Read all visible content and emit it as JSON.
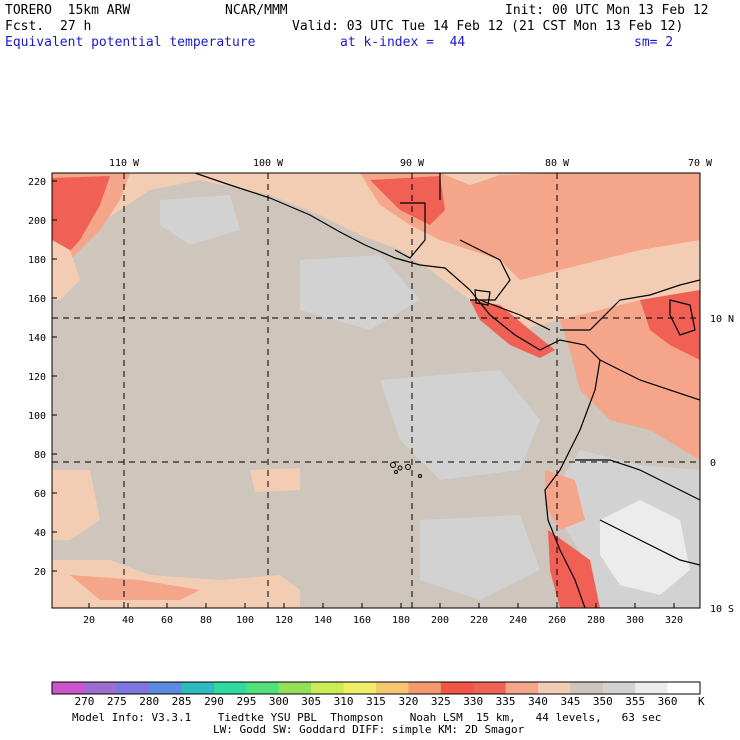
{
  "header": {
    "model": "TORERO  15km ARW",
    "center": "NCAR/MMM",
    "init": "Init: 00 UTC Mon 13 Feb 12",
    "fcst_label": "Fcst.",
    "fcst_value": "27 h",
    "valid": "Valid: 03 UTC Tue 14 Feb 12 (21 CST Mon 13 Feb 12)",
    "field": "Equivalent potential temperature",
    "level": "at k-index =  44",
    "smooth": "sm= 2"
  },
  "map": {
    "lon_labels": [
      "110 W",
      "100 W",
      "90 W",
      "80 W",
      "70 W"
    ],
    "lat_labels": [
      "10 N",
      "0",
      "10 S"
    ],
    "x_ticks": [
      "20",
      "40",
      "60",
      "80",
      "100",
      "120",
      "140",
      "160",
      "180",
      "200",
      "220",
      "240",
      "260",
      "280",
      "300",
      "320"
    ],
    "y_ticks": [
      "20",
      "40",
      "60",
      "80",
      "100",
      "120",
      "140",
      "160",
      "180",
      "200",
      "220"
    ],
    "background_color": "#cec5bd"
  },
  "colorbar": {
    "labels": [
      "270",
      "275",
      "280",
      "285",
      "290",
      "295",
      "300",
      "305",
      "310",
      "315",
      "320",
      "325",
      "330",
      "335",
      "340",
      "345",
      "350",
      "355",
      "360"
    ],
    "unit": "K",
    "colors": [
      "#cc55cc",
      "#9a6fcf",
      "#7a78e0",
      "#5a8be0",
      "#2bbcbc",
      "#2fd9a0",
      "#55e07a",
      "#95e05a",
      "#c8ee55",
      "#f0ee66",
      "#f7c872",
      "#f59a6e",
      "#f05548",
      "#f06055",
      "#f5a58a",
      "#f3cdb3",
      "#cec5bd",
      "#d2d2d2",
      "#ececec",
      "#ffffff"
    ]
  },
  "footer": {
    "line1": "Model Info: V3.3.1    Tiedtke YSU PBL  Thompson    Noah LSM  15 km,   44 levels,   63 sec",
    "line2": "LW: Godd SW: Goddard DIFF: simple KM: 2D Smagor"
  }
}
